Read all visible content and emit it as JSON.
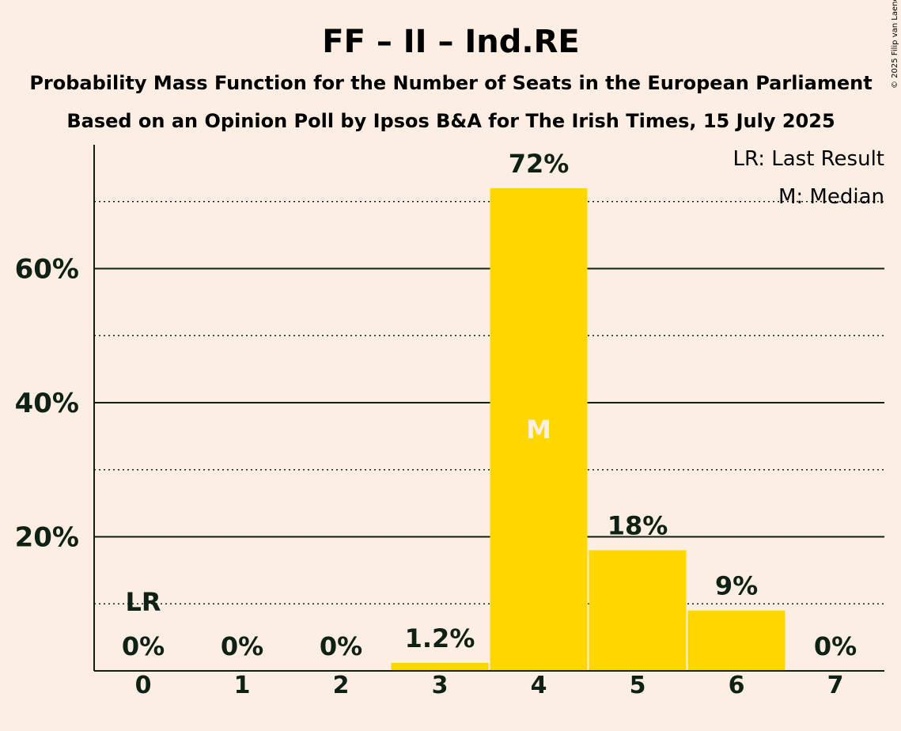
{
  "header": {
    "title": "FF – II – Ind.RE",
    "subtitle1": "Probability Mass Function for the Number of Seats in the European Parliament",
    "subtitle2": "Based on an Opinion Poll by Ipsos B&A for The Irish Times, 15 July 2025"
  },
  "legend": {
    "last_result": "LR: Last Result",
    "median": "M: Median"
  },
  "copyright": "© 2025 Filip van Laenen",
  "chart_data": {
    "type": "bar",
    "categories": [
      "0",
      "1",
      "2",
      "3",
      "4",
      "5",
      "6",
      "7"
    ],
    "values": [
      0,
      0,
      0,
      1.2,
      72,
      18,
      9,
      0
    ],
    "value_labels": [
      "0%",
      "0%",
      "0%",
      "1.2%",
      "72%",
      "18%",
      "9%",
      "0%"
    ],
    "ylim": [
      0,
      78
    ],
    "yticks": [
      20,
      40,
      60
    ],
    "ytick_labels": [
      "20%",
      "40%",
      "60%"
    ],
    "minor_gridlines": [
      10,
      30,
      50,
      70
    ],
    "last_result_index": 0,
    "last_result_label": "LR",
    "median_index": 4,
    "median_label": "M",
    "colors": {
      "bar": "#FFD700",
      "background": "#FDEEE3",
      "text": "#0f2015",
      "median_label": "#FDEEE3"
    }
  }
}
